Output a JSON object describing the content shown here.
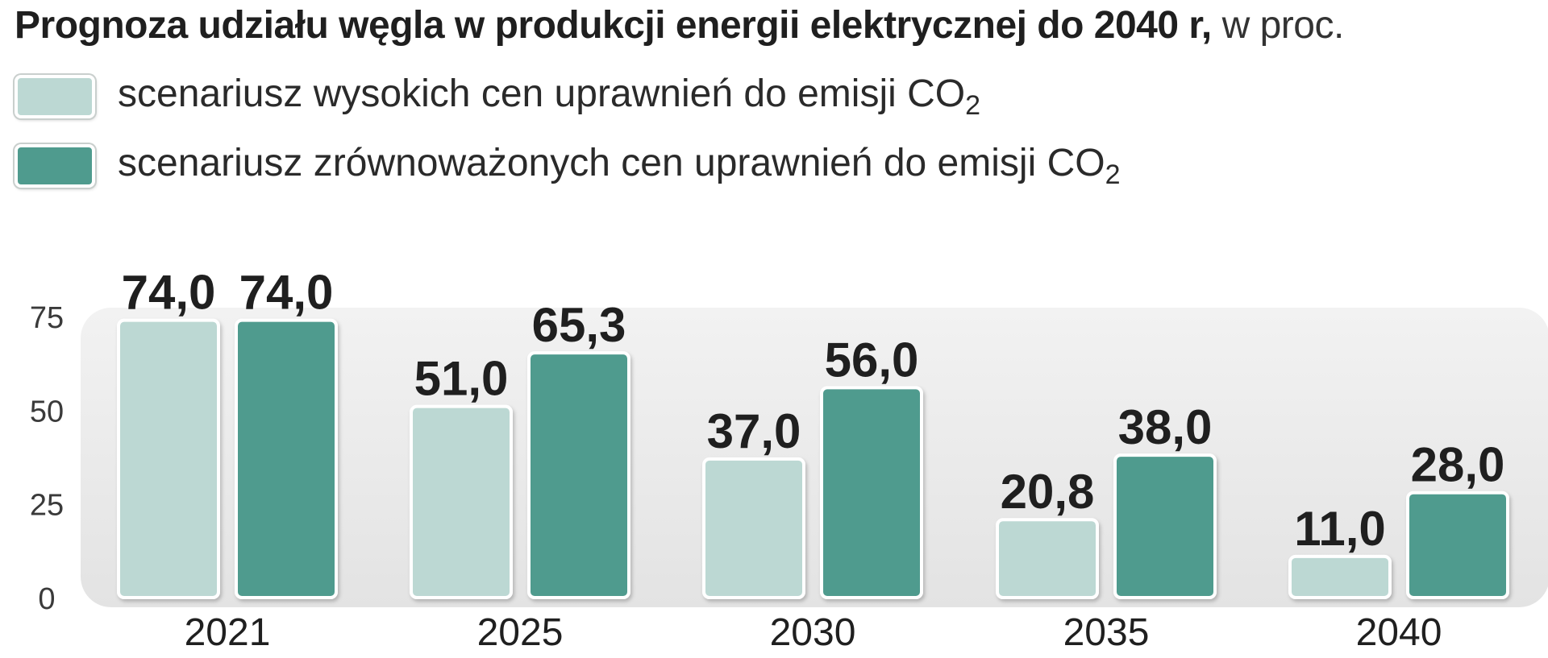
{
  "chart_data": {
    "type": "bar",
    "title": "Prognoza udziału węgla w produkcji energii elektrycznej do 2040 r,",
    "subtitle": "w proc.",
    "xlabel": "",
    "ylabel": "",
    "ylim": [
      0,
      75
    ],
    "yticks": [
      0,
      25,
      50,
      75
    ],
    "categories": [
      "2021",
      "2025",
      "2030",
      "2035",
      "2040"
    ],
    "series": [
      {
        "name": "scenariusz wysokich cen uprawnień do emisji CO",
        "name_sub": "2",
        "color": "#bcd8d3",
        "values": [
          74.0,
          51.0,
          37.0,
          20.8,
          11.0
        ],
        "labels": [
          "74,0",
          "51,0",
          "37,0",
          "20,8",
          "11,0"
        ]
      },
      {
        "name": "scenariusz zrównoważonych cen uprawnień do emisji CO",
        "name_sub": "2",
        "color": "#4f9b8e",
        "values": [
          74.0,
          65.3,
          56.0,
          38.0,
          28.0
        ],
        "labels": [
          "74,0",
          "65,3",
          "56,0",
          "38,0",
          "28,0"
        ]
      }
    ],
    "legend_position": "top-left",
    "grid": false
  }
}
